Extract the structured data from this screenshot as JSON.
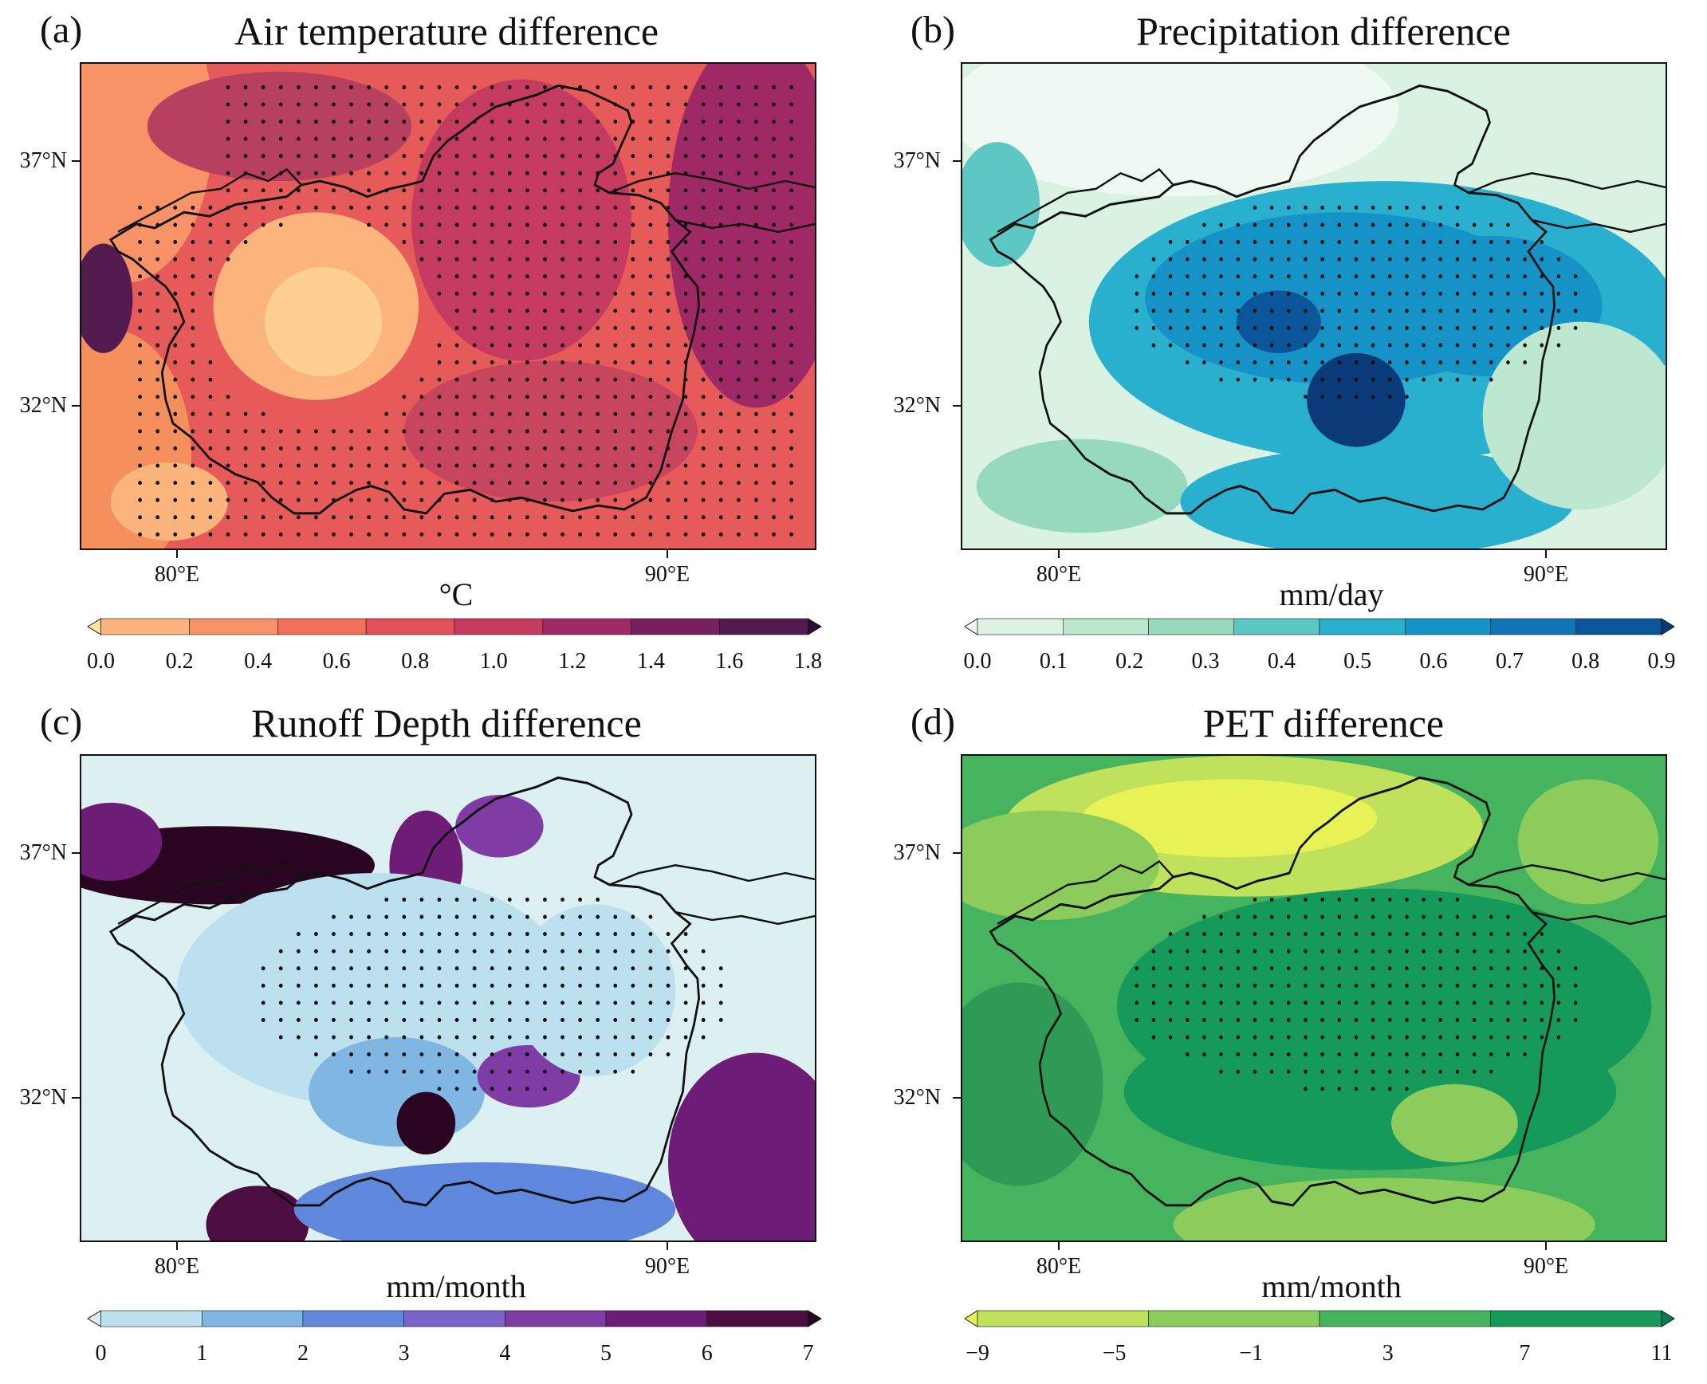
{
  "figure": {
    "panels": [
      {
        "letter": "(a)",
        "title": "Air temperature difference",
        "unit": "°C",
        "y_labels": [
          "37°N",
          "32°N"
        ],
        "x_labels": [
          "80°E",
          "90°E"
        ],
        "colorbar_ticks": [
          "0.0",
          "0.2",
          "0.4",
          "0.6",
          "0.8",
          "1.0",
          "1.2",
          "1.4",
          "1.6",
          "1.8"
        ],
        "colors": [
          "#fde2a0",
          "#fbb57c",
          "#f89368",
          "#f1705a",
          "#e2505a",
          "#c53b60",
          "#9f2965",
          "#7a1f5e",
          "#531a4e",
          "#2b0f36"
        ],
        "background": "#e8555b",
        "stippling": "dense"
      },
      {
        "letter": "(b)",
        "title": "Precipitation difference",
        "unit": "mm/day",
        "y_labels": [
          "37°N",
          "32°N"
        ],
        "x_labels": [
          "80°E",
          "90°E"
        ],
        "colorbar_ticks": [
          "0.0",
          "0.1",
          "0.2",
          "0.3",
          "0.4",
          "0.5",
          "0.6",
          "0.7",
          "0.8",
          "0.9"
        ],
        "colors": [
          "#f4fbf5",
          "#dcf2e2",
          "#bde8cf",
          "#96d9bd",
          "#5dc7c3",
          "#2ab0cf",
          "#1593c6",
          "#1175b5",
          "#0b559b",
          "#0a3a78"
        ],
        "background": "#cdeed9",
        "stippling": "central"
      },
      {
        "letter": "(c)",
        "title": "Runoff Depth difference",
        "unit": "mm/month",
        "y_labels": [
          "37°N",
          "32°N"
        ],
        "x_labels": [
          "80°E",
          "90°E"
        ],
        "colorbar_ticks": [
          "0",
          "1",
          "2",
          "3",
          "4",
          "5",
          "6",
          "7"
        ],
        "colors": [
          "#d9eef0",
          "#bde0ee",
          "#7fb6e2",
          "#5f88dc",
          "#7a63c9",
          "#7f3ca5",
          "#6e1d77",
          "#4c0d41",
          "#2a0522"
        ],
        "background": "#dcf0f1",
        "stippling": "central"
      },
      {
        "letter": "(d)",
        "title": "PET difference",
        "unit": "mm/month",
        "y_labels": [
          "37°N",
          "32°N"
        ],
        "x_labels": [
          "80°E",
          "90°E"
        ],
        "colorbar_ticks": [
          "−9",
          "−5",
          "−1",
          "3",
          "7",
          "11"
        ],
        "colors": [
          "#e7f254",
          "#bfe15b",
          "#8ccc5c",
          "#46b35f",
          "#159a5b",
          "#0b7c50"
        ],
        "background": "#3caa5c",
        "stippling": "central"
      }
    ]
  }
}
